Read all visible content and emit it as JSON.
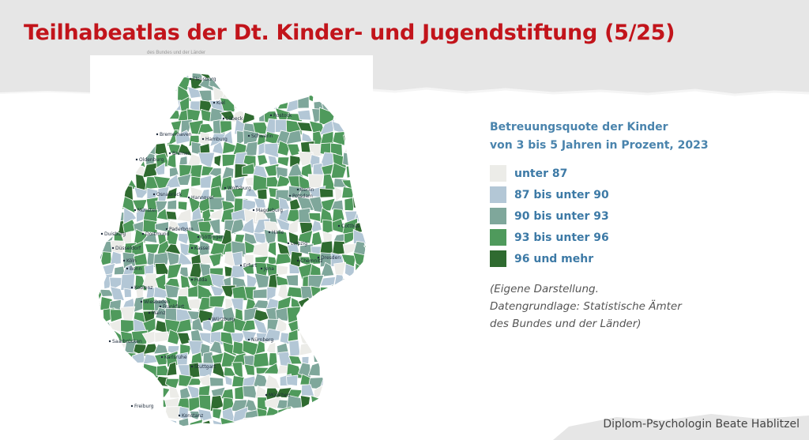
{
  "slide": {
    "title": "Teilhabeatlas der Dt. Kinder- und Jugendstiftung (5/25)",
    "author": "Diplom-Psychologin Beate Hablitzel"
  },
  "map": {
    "top_caption": "des Bundes und der Länder",
    "region": "Deutschland (Kreise)",
    "cities": [
      "Flensburg",
      "Kiel",
      "Lübeck",
      "Rostock",
      "Schwerin",
      "Hamburg",
      "Bremerhaven",
      "Bremen",
      "Oldenburg",
      "Osnabrück",
      "Hannover",
      "Wolfsburg",
      "Berlin",
      "Potsdam",
      "Magdeburg",
      "Münster",
      "Duisburg",
      "Dortmund",
      "Paderborn",
      "Göttingen",
      "Halle",
      "Leipzig",
      "Cottbus",
      "Düsseldorf",
      "Köln",
      "Kassel",
      "Erfurt",
      "Jena",
      "Chemnitz",
      "Dresden",
      "Bonn",
      "Fulda",
      "Koblenz",
      "Wiesbaden",
      "Frankfurt",
      "Mainz",
      "Würzburg",
      "Saarbrücken",
      "Nürnberg",
      "Karlsruhe",
      "Stuttgart",
      "München",
      "Freiburg",
      "Konstanz"
    ],
    "colors": {
      "c0": "#ecece8",
      "c1": "#b3c7d6",
      "c2": "#7fa79b",
      "c3": "#4f9a5c",
      "c4": "#2f6b30",
      "border": "#ffffff"
    }
  },
  "legend": {
    "title_line1": "Betreuungsquote der Kinder",
    "title_line2": "von 3 bis 5 Jahren in Prozent, 2023",
    "items": [
      {
        "label": "unter 87",
        "color": "#ecece8"
      },
      {
        "label": "87 bis unter 90",
        "color": "#b3c7d6"
      },
      {
        "label": "90 bis unter 93",
        "color": "#7fa79b"
      },
      {
        "label": "93 bis unter 96",
        "color": "#4f9a5c"
      },
      {
        "label": "96 und mehr",
        "color": "#2f6b30"
      }
    ],
    "note_line1": "(Eigene Darstellung.",
    "note_line2": "Datengrundlage: Statistische Ämter",
    "note_line3": "des Bundes und der Länder)"
  }
}
